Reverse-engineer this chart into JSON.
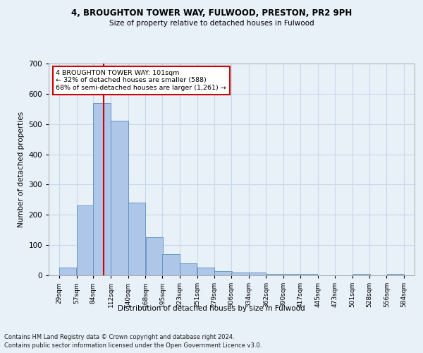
{
  "title1": "4, BROUGHTON TOWER WAY, FULWOOD, PRESTON, PR2 9PH",
  "title2": "Size of property relative to detached houses in Fulwood",
  "xlabel": "Distribution of detached houses by size in Fulwood",
  "ylabel": "Number of detached properties",
  "footer1": "Contains HM Land Registry data © Crown copyright and database right 2024.",
  "footer2": "Contains public sector information licensed under the Open Government Licence v3.0.",
  "annotation_line1": "4 BROUGHTON TOWER WAY: 101sqm",
  "annotation_line2": "← 32% of detached houses are smaller (588)",
  "annotation_line3": "68% of semi-detached houses are larger (1,261) →",
  "subject_value": 101,
  "bar_edges": [
    29,
    57,
    84,
    112,
    140,
    168,
    195,
    223,
    251,
    279,
    306,
    334,
    362,
    390,
    417,
    445,
    473,
    501,
    528,
    556,
    584
  ],
  "bar_heights": [
    25,
    230,
    570,
    510,
    240,
    125,
    70,
    40,
    25,
    15,
    10,
    10,
    5,
    5,
    5,
    0,
    0,
    5,
    0,
    5
  ],
  "bar_color": "#aec6e8",
  "bar_edge_color": "#5a8fc0",
  "subject_line_color": "#cc0000",
  "annotation_box_color": "#cc0000",
  "annotation_box_fill": "#ffffff",
  "grid_color": "#c8d8e8",
  "background_color": "#e8f0f8",
  "ylim": [
    0,
    700
  ],
  "yticks": [
    0,
    100,
    200,
    300,
    400,
    500,
    600,
    700
  ]
}
